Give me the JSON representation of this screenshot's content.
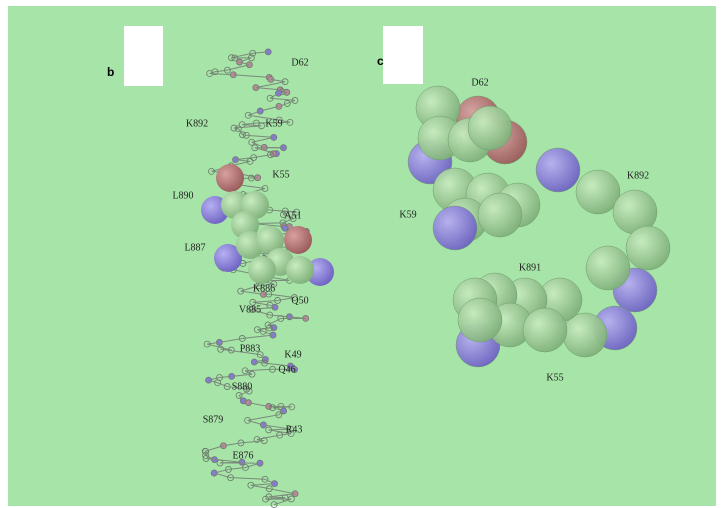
{
  "panels": [
    {
      "label": "b",
      "residues": [
        "D62",
        "K892",
        "K59",
        "K55",
        "L890",
        "A51",
        "L887",
        "K886",
        "Q50",
        "V885",
        "P883",
        "K49",
        "Q46",
        "S880",
        "S879",
        "R43",
        "E876"
      ]
    },
    {
      "label": "c",
      "residues": [
        "D62",
        "K892",
        "K59",
        "K891",
        "K55"
      ]
    }
  ]
}
